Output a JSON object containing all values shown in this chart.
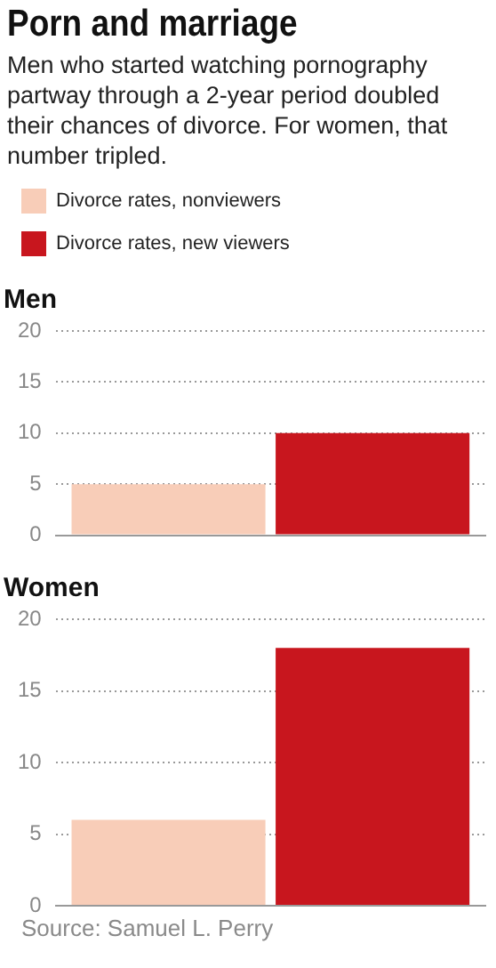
{
  "chart_data": [
    {
      "type": "other",
      "title": "Porn and marriage",
      "subtitle": "Men who started watching pornography partway through a 2-year period doubled their chances of divorce. For women, that number tripled."
    },
    {
      "type": "bar",
      "title": "Men",
      "categories": [
        null
      ],
      "series": [
        {
          "name": "Divorce rates, nonviewers",
          "color": "#f8cdb8",
          "values": [
            5
          ]
        },
        {
          "name": "Divorce rates, new viewers",
          "color": "#c8161e",
          "values": [
            10
          ]
        }
      ],
      "ylim": [
        0,
        20
      ],
      "yticks": [
        0,
        5,
        10,
        15,
        20
      ],
      "grid": "y",
      "legend": "top",
      "tick_labels": "y"
    },
    {
      "type": "bar",
      "title": "Women",
      "categories": [
        null
      ],
      "series": [
        {
          "color": "#f8cdb8",
          "values": [
            6
          ]
        },
        {
          "color": "#c8161e",
          "values": [
            18
          ]
        }
      ],
      "ylim": [
        0,
        20
      ],
      "yticks": [
        0,
        5,
        10,
        15,
        20
      ],
      "grid": "y",
      "tick_labels": "y",
      "annotations": [
        "Source: Samuel L. Perry"
      ]
    }
  ]
}
